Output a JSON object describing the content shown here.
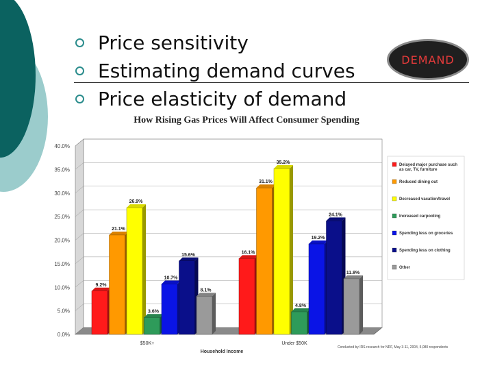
{
  "slide": {
    "bullets": [
      "Price sensitivity",
      "Estimating demand curves",
      "Price elasticity of demand"
    ],
    "badge": "DEMAND",
    "credit": "Conducted by IRS research for NRF, May 3-11, 2004, 5,080 respondents"
  },
  "colors": {
    "teal_dark": "#0b6260",
    "teal_light": "#9bcccc",
    "badge_text": "#e63b3b"
  },
  "chart_data": {
    "type": "bar",
    "title": "How Rising Gas Prices Will Affect Consumer Spending",
    "xlabel": "Household Income",
    "ylabel": "",
    "categories": [
      "$50K+",
      "Under $50K"
    ],
    "ylim": [
      0,
      40
    ],
    "yticks": [
      "0.0%",
      "5.0%",
      "10.0%",
      "15.0%",
      "20.0%",
      "25.0%",
      "30.0%",
      "35.0%",
      "40.0%"
    ],
    "legend_position": "right",
    "series": [
      {
        "name": "Delayed major purchase such as car, TV, furniture",
        "color": "#ff1a1a",
        "values": [
          9.2,
          16.1
        ],
        "labels": [
          "9.2%",
          "16.1%"
        ]
      },
      {
        "name": "Reduced dining out",
        "color": "#ff9900",
        "values": [
          21.1,
          31.1
        ],
        "labels": [
          "21.1%",
          "31.1%"
        ]
      },
      {
        "name": "Decreased vacation/travel",
        "color": "#ffff00",
        "values": [
          26.9,
          35.2
        ],
        "labels": [
          "26.9%",
          "35.2%"
        ]
      },
      {
        "name": "Increased carpooling",
        "color": "#2e9b5a",
        "values": [
          3.6,
          4.8
        ],
        "labels": [
          "3.6%",
          "4.8%"
        ]
      },
      {
        "name": "Spending less on groceries",
        "color": "#0a14e6",
        "values": [
          10.7,
          19.2
        ],
        "labels": [
          "10.7%",
          "19.2%"
        ]
      },
      {
        "name": "Spending less on clothing",
        "color": "#0a0f8a",
        "values": [
          15.6,
          24.1
        ],
        "labels": [
          "15.6%",
          "24.1%"
        ]
      },
      {
        "name": "Other",
        "color": "#9a9a9a",
        "values": [
          8.1,
          11.8
        ],
        "labels": [
          "8.1%",
          "11.8%"
        ]
      }
    ]
  }
}
